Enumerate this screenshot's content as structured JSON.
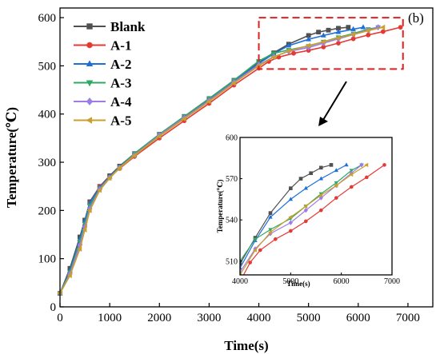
{
  "chart_data": [
    {
      "type": "line",
      "title": "",
      "panel_label": "(b)",
      "xlabel": "Time(s)",
      "ylabel": "Temperature(℃)",
      "xlim": [
        0,
        7500
      ],
      "ylim": [
        0,
        620
      ],
      "xticks": [
        0,
        1000,
        2000,
        3000,
        4000,
        5000,
        6000,
        7000
      ],
      "yticks": [
        0,
        100,
        200,
        300,
        400,
        500,
        600
      ],
      "legend": "top-left",
      "grid": false,
      "zoom_region": {
        "x": [
          4000,
          6900
        ],
        "y": [
          500,
          600
        ]
      },
      "series": [
        {
          "name": "Blank",
          "color": "#505050",
          "marker": "square",
          "x": [
            0,
            200,
            400,
            500,
            600,
            800,
            1000,
            1200,
            1500,
            2000,
            2500,
            3000,
            3500,
            4000,
            4300,
            4600,
            5000,
            5200,
            5400,
            5600,
            5800
          ],
          "y": [
            28,
            80,
            145,
            180,
            218,
            250,
            272,
            292,
            318,
            358,
            395,
            432,
            470,
            508,
            527,
            545,
            563,
            570,
            574,
            578,
            580
          ]
        },
        {
          "name": "A-1",
          "color": "#e53935",
          "marker": "circle",
          "x": [
            0,
            200,
            400,
            500,
            600,
            800,
            1000,
            1200,
            1500,
            2000,
            2500,
            3000,
            3500,
            4000,
            4200,
            4400,
            4700,
            5000,
            5300,
            5600,
            5900,
            6200,
            6500,
            6850
          ],
          "y": [
            28,
            70,
            130,
            170,
            215,
            250,
            270,
            287,
            312,
            350,
            386,
            422,
            460,
            495,
            509,
            518,
            526,
            532,
            539,
            547,
            556,
            564,
            571,
            580
          ]
        },
        {
          "name": "A-2",
          "color": "#1e6fd9",
          "marker": "triangle",
          "x": [
            0,
            200,
            400,
            500,
            600,
            800,
            1000,
            1200,
            1500,
            2000,
            2500,
            3000,
            3500,
            4000,
            4300,
            4600,
            5000,
            5300,
            5600,
            5900,
            6100
          ],
          "y": [
            28,
            75,
            140,
            178,
            215,
            248,
            270,
            290,
            316,
            356,
            394,
            430,
            468,
            505,
            525,
            542,
            555,
            563,
            570,
            576,
            580
          ]
        },
        {
          "name": "A-3",
          "color": "#2fa866",
          "marker": "down-triangle",
          "x": [
            0,
            200,
            400,
            500,
            600,
            800,
            1000,
            1200,
            1500,
            2000,
            2500,
            3000,
            3500,
            4000,
            4300,
            4600,
            5000,
            5300,
            5600,
            5900,
            6200,
            6400
          ],
          "y": [
            28,
            72,
            135,
            172,
            210,
            246,
            269,
            290,
            318,
            358,
            395,
            432,
            470,
            510,
            526,
            533,
            541,
            550,
            559,
            567,
            576,
            580
          ]
        },
        {
          "name": "A-4",
          "color": "#9e7be8",
          "marker": "diamond",
          "x": [
            0,
            200,
            400,
            500,
            600,
            800,
            1000,
            1200,
            1500,
            2000,
            2500,
            3000,
            3500,
            4000,
            4300,
            4600,
            5000,
            5300,
            5600,
            5900,
            6200,
            6400
          ],
          "y": [
            28,
            68,
            128,
            166,
            204,
            244,
            268,
            289,
            315,
            356,
            392,
            428,
            466,
            502,
            519,
            530,
            538,
            547,
            556,
            565,
            574,
            580
          ]
        },
        {
          "name": "A-5",
          "color": "#c8a02c",
          "marker": "left-triangle",
          "x": [
            0,
            200,
            400,
            500,
            600,
            800,
            1000,
            1200,
            1500,
            2000,
            2500,
            3000,
            3500,
            4000,
            4300,
            4600,
            5000,
            5300,
            5600,
            5900,
            6200,
            6500
          ],
          "y": [
            28,
            65,
            120,
            160,
            200,
            242,
            267,
            288,
            314,
            354,
            390,
            426,
            464,
            500,
            518,
            531,
            542,
            550,
            558,
            565,
            573,
            580
          ]
        }
      ]
    },
    {
      "type": "line",
      "title": "",
      "xlabel": "Time(s)",
      "ylabel": "Temperature(℃)",
      "xlim": [
        4000,
        7000
      ],
      "ylim": [
        500,
        600
      ],
      "xticks": [
        4000,
        5000,
        6000,
        7000
      ],
      "yticks": [
        510,
        540,
        570,
        600
      ],
      "series_ref": "same series as main plot"
    }
  ]
}
